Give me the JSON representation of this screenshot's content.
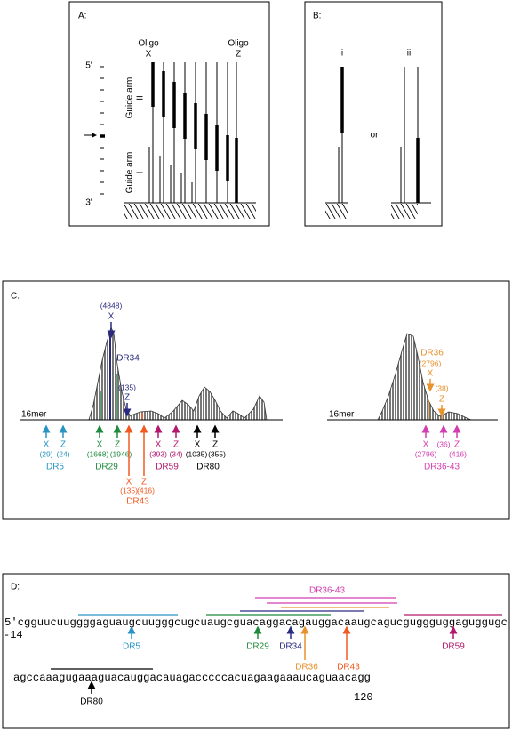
{
  "panel_a": {
    "label": "A:",
    "oligo_x": [
      "Oligo",
      "X"
    ],
    "oligo_z": [
      "Oligo",
      "Z"
    ],
    "end_5": "5'",
    "end_3": "3'",
    "guide_arm_ii": [
      "Guide arm",
      "II"
    ],
    "guide_arm_i": [
      "Guide arm",
      "I"
    ]
  },
  "panel_b": {
    "label": "B:",
    "option_i": "i",
    "option_ii": "ii",
    "or": "or"
  },
  "panel_c": {
    "label": "C:",
    "axis_labels": [
      "16mer",
      "16mer"
    ],
    "dr34": {
      "x_count": "(4848)",
      "x": "X",
      "name": "DR34",
      "z_count": "(135)",
      "z": "Z"
    },
    "dr36": {
      "name": "DR36",
      "x_count": "(2796)",
      "x": "X",
      "z_count": "(38)",
      "z": "Z"
    },
    "groups": [
      {
        "name": "DR5",
        "x": "X",
        "x_count": "(29)",
        "z": "Z",
        "z_count": "(24)"
      },
      {
        "name": "DR29",
        "x": "X",
        "x_count": "(1668)",
        "z": "Z",
        "z_count": "(1946)"
      },
      {
        "name": "DR43",
        "x": "X",
        "x_count": "(135)",
        "z": "Z",
        "z_count": "(416)"
      },
      {
        "name": "DR59",
        "x": "X",
        "x_count": "(393)",
        "z": "Z",
        "z_count": "(34)"
      },
      {
        "name": "DR80",
        "x": "X",
        "x_count": "(1035)",
        "z": "Z",
        "z_count": "(355)"
      },
      {
        "name": "DR36-43",
        "x": "X",
        "x_count": "(2796)",
        "mid_count": "(36)",
        "z": "Z",
        "z_count": "(416)"
      }
    ]
  },
  "panel_d": {
    "label": "D:",
    "sequence_1": "5'cgguucuuggggaguaugcuugggcugcuaugcguacaggacagauggacaaugcagucguggguggaguggugc",
    "start_position": "-14",
    "sequence_2": "agccaaagugaaaguacauggacauagacccccacuagaagaaaucaguaacagg",
    "end_position": "120",
    "sites": [
      "DR36-43",
      "DR5",
      "DR29",
      "DR34",
      "DR36",
      "DR43",
      "DR59",
      "DR80"
    ]
  }
}
